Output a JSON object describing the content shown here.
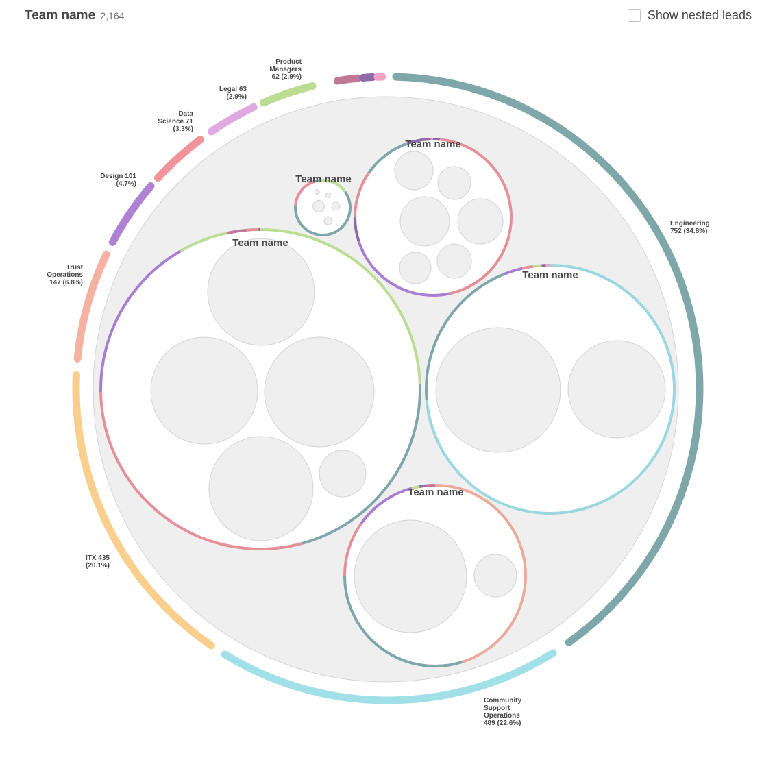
{
  "header": {
    "title": "Team name",
    "count": "2,164",
    "toggle_label": "Show nested leads"
  },
  "chart_data": {
    "type": "circle-packing",
    "title": "Team name",
    "total": 2164,
    "outer_ring": [
      {
        "name": "Engineering",
        "count": 752,
        "pct": "34.8%",
        "color": "#7fa7a9",
        "label_lines": [
          "Engineering",
          "752 (34.8%)"
        ]
      },
      {
        "name": "Community Support Operations",
        "count": 489,
        "pct": "22.6%",
        "color": "#a0e0e6",
        "label_lines": [
          "Community",
          "Support",
          "Operations",
          "489 (22.6%)"
        ]
      },
      {
        "name": "ITX",
        "count": 435,
        "pct": "20.1%",
        "color": "#f9cf8e",
        "label_lines": [
          "ITX 435",
          "(20.1%)"
        ]
      },
      {
        "name": "Trust Operations",
        "count": 147,
        "pct": "6.8%",
        "color": "#f5b2a2",
        "label_lines": [
          "Trust",
          "Operations",
          "147 (6.8%)"
        ]
      },
      {
        "name": "Design",
        "count": 101,
        "pct": "4.7%",
        "color": "#b082d4",
        "label_lines": [
          "Design 101",
          "(4.7%)"
        ]
      },
      {
        "name": "Data Science",
        "count": 71,
        "pct": "3.3%",
        "color": "#f2929a",
        "label_lines": [
          "Data",
          "Science 71",
          "(3.3%)"
        ]
      },
      {
        "name": "Legal",
        "count": 63,
        "pct": "2.9%",
        "color": "#e1a9e2",
        "label_lines": [
          "Legal 63",
          "(2.9%)"
        ]
      },
      {
        "name": "Product Managers",
        "count": 62,
        "pct": "2.9%",
        "color": "#bcdc94",
        "label_lines": [
          "Product",
          "Managers",
          "62 (2.9%)"
        ]
      },
      {
        "name": "",
        "count": null,
        "pct": "",
        "color": "#c07898",
        "label_lines": []
      },
      {
        "name": "",
        "count": null,
        "pct": "",
        "color": "#8f6aa8",
        "label_lines": []
      },
      {
        "name": "",
        "count": null,
        "pct": "",
        "color": "#f1a4c3",
        "label_lines": []
      }
    ],
    "teams": [
      {
        "label": "Team name",
        "palette": [
          "#e58f98",
          "#8f6aa8",
          "#7fa7a9",
          "#c07898",
          "#bcdc94",
          "#a87ed0"
        ]
      },
      {
        "label": "Team name",
        "palette": [
          "#e58f98",
          "#8f6aa8",
          "#7fa7a9",
          "#a87ed0"
        ]
      },
      {
        "label": "Team name",
        "palette": [
          "#7fa7a9",
          "#a87ed0",
          "#bcdc94",
          "#e58f98",
          "#8f6aa8",
          "#f0c98e"
        ]
      },
      {
        "label": "Team name",
        "palette": [
          "#7fa7a9",
          "#a87ed0",
          "#e58f98",
          "#bcdc94",
          "#8f6aa8",
          "#f1a4c3",
          "#9ad7de"
        ]
      },
      {
        "label": "Team name",
        "palette": [
          "#7fa7a9",
          "#e58f98",
          "#a87ed0",
          "#bcdc94",
          "#8f6aa8",
          "#c07898",
          "#eaaa9c"
        ]
      }
    ]
  }
}
